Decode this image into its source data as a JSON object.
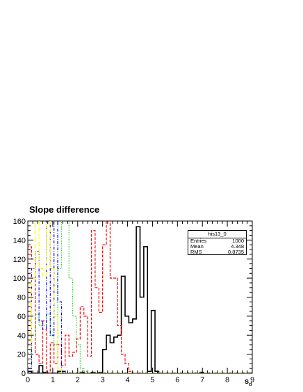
{
  "chart_data": {
    "type": "histogram",
    "title": "Slope difference",
    "xlabel": "s",
    "xlabel_sub": "d",
    "xlim": [
      0,
      9
    ],
    "ylim": [
      0,
      160
    ],
    "x_ticks": [
      "0",
      "1",
      "2",
      "3",
      "4",
      "5",
      "6",
      "7",
      "8",
      "9"
    ],
    "y_ticks": [
      "0",
      "20",
      "40",
      "60",
      "80",
      "100",
      "120",
      "140",
      "160"
    ],
    "bin_width": 0.15,
    "series": [
      {
        "color": "#000000",
        "style": "solid",
        "values": [
          2,
          0,
          0,
          0,
          0,
          0,
          0,
          0,
          0,
          0,
          0,
          0,
          0,
          0,
          0,
          0,
          0,
          0,
          0,
          0,
          0,
          0,
          0,
          0,
          0,
          0,
          0,
          0,
          0,
          0,
          0,
          0,
          0,
          0,
          0,
          0,
          0,
          0,
          0,
          0,
          0,
          0,
          0,
          0,
          0,
          0,
          0,
          0,
          0,
          0,
          0,
          0,
          0,
          0,
          0,
          0,
          0,
          0,
          0,
          0
        ]
      },
      {
        "color": "#000000",
        "style": "solid",
        "values": [
          0,
          0,
          0,
          8,
          1,
          0,
          0,
          0,
          2,
          2,
          0,
          0,
          0,
          0,
          1,
          0,
          0,
          1,
          0,
          1,
          25,
          40,
          32,
          38,
          40,
          102,
          60,
          53,
          57,
          154,
          80,
          133,
          2,
          66,
          2,
          0,
          0,
          0,
          0,
          0,
          0,
          0,
          0,
          0,
          0,
          0,
          1,
          0,
          0,
          0,
          0,
          0,
          0,
          0,
          0,
          0,
          0,
          0,
          0,
          0
        ]
      },
      {
        "color": "#ff0000",
        "style": "dashed",
        "values": [
          133,
          120,
          20,
          10,
          55,
          0,
          32,
          10,
          30,
          8,
          40,
          18,
          22,
          36,
          70,
          60,
          18,
          150,
          90,
          64,
          135,
          160,
          100,
          100,
          50,
          20,
          10,
          2,
          0,
          0,
          0,
          0,
          0,
          0,
          0,
          0,
          0,
          0,
          0,
          0,
          0,
          0,
          0,
          0,
          0,
          0,
          0,
          0,
          0,
          0,
          0,
          0,
          0,
          0,
          0,
          0,
          0,
          0,
          0,
          0
        ]
      },
      {
        "color": "#00cc00",
        "style": "dotted",
        "values": [
          5,
          40,
          62,
          50,
          50,
          62,
          40,
          30,
          110,
          160,
          162,
          100,
          60,
          30,
          5,
          2,
          0,
          0,
          0,
          0,
          0,
          0,
          0,
          0,
          0,
          0,
          0,
          0,
          0,
          0,
          0,
          0,
          0,
          0,
          0,
          0,
          0,
          0,
          0,
          0,
          0,
          0,
          0,
          0,
          0,
          0,
          0,
          0,
          0,
          0,
          0,
          0,
          0,
          0,
          0,
          0,
          0,
          0,
          0,
          0
        ]
      },
      {
        "color": "#0000ff",
        "style": "dashdot",
        "values": [
          5,
          110,
          128,
          55,
          46,
          162,
          40,
          162,
          75,
          2,
          0,
          0,
          0,
          0,
          0,
          0,
          0,
          0,
          0,
          0,
          0,
          0,
          0,
          0,
          0,
          0,
          0,
          0,
          0,
          0,
          0,
          0,
          0,
          0,
          0,
          0,
          0,
          0,
          0,
          0,
          0,
          0,
          0,
          0,
          0,
          0,
          0,
          0,
          0,
          0,
          0,
          0,
          0,
          0,
          0,
          0,
          0,
          0,
          0,
          0
        ]
      },
      {
        "color": "#ffff00",
        "style": "longdash",
        "values": [
          30,
          100,
          162,
          110,
          102,
          162,
          110,
          60,
          5,
          0,
          0,
          0,
          0,
          0,
          0,
          0,
          0,
          0,
          0,
          0,
          0,
          0,
          0,
          0,
          0,
          0,
          0,
          0,
          0,
          0,
          0,
          0,
          0,
          0,
          0,
          0,
          0,
          0,
          0,
          0,
          0,
          0,
          0,
          0,
          0,
          0,
          0,
          0,
          0,
          0,
          0,
          0,
          0,
          0,
          0,
          0,
          0,
          0,
          0,
          0
        ]
      }
    ],
    "stats": {
      "name": "his13_0",
      "rows": [
        {
          "label": "Entries",
          "value": "1000"
        },
        {
          "label": "Mean",
          "value": "4.348"
        },
        {
          "label": "RMS",
          "value": "0.8735"
        }
      ]
    }
  }
}
